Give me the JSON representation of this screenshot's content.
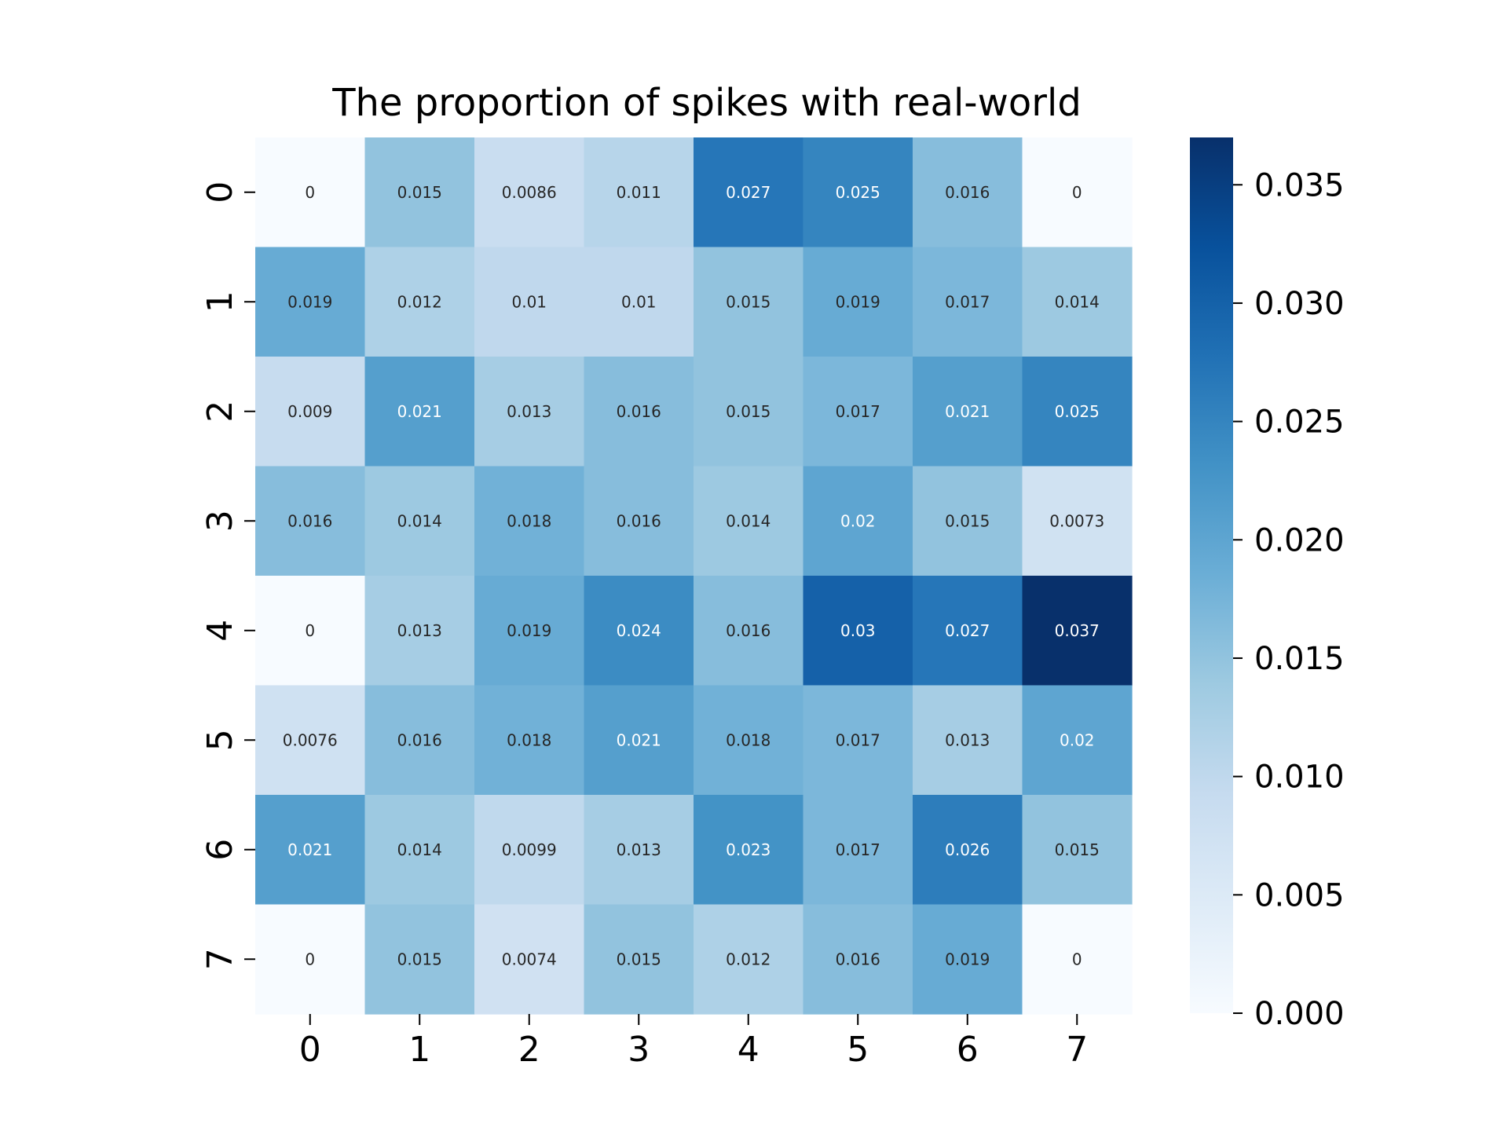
{
  "chart_data": {
    "type": "heatmap",
    "title": "The proportion of spikes with real-world",
    "x_labels": [
      "0",
      "1",
      "2",
      "3",
      "4",
      "5",
      "6",
      "7"
    ],
    "y_labels": [
      "0",
      "1",
      "2",
      "3",
      "4",
      "5",
      "6",
      "7"
    ],
    "values": [
      [
        0,
        0.015,
        0.0086,
        0.011,
        0.027,
        0.025,
        0.016,
        0
      ],
      [
        0.019,
        0.012,
        0.01,
        0.01,
        0.015,
        0.019,
        0.017,
        0.014
      ],
      [
        0.009,
        0.021,
        0.013,
        0.016,
        0.015,
        0.017,
        0.021,
        0.025
      ],
      [
        0.016,
        0.014,
        0.018,
        0.016,
        0.014,
        0.02,
        0.015,
        0.0073
      ],
      [
        0,
        0.013,
        0.019,
        0.024,
        0.016,
        0.03,
        0.027,
        0.037
      ],
      [
        0.0076,
        0.016,
        0.018,
        0.021,
        0.018,
        0.017,
        0.013,
        0.02
      ],
      [
        0.021,
        0.014,
        0.0099,
        0.013,
        0.023,
        0.017,
        0.026,
        0.015
      ],
      [
        0,
        0.015,
        0.0074,
        0.015,
        0.012,
        0.016,
        0.019,
        0
      ]
    ],
    "labels": [
      [
        "0",
        "0.015",
        "0.0086",
        "0.011",
        "0.027",
        "0.025",
        "0.016",
        "0"
      ],
      [
        "0.019",
        "0.012",
        "0.01",
        "0.01",
        "0.015",
        "0.019",
        "0.017",
        "0.014"
      ],
      [
        "0.009",
        "0.021",
        "0.013",
        "0.016",
        "0.015",
        "0.017",
        "0.021",
        "0.025"
      ],
      [
        "0.016",
        "0.014",
        "0.018",
        "0.016",
        "0.014",
        "0.02",
        "0.015",
        "0.0073"
      ],
      [
        "0",
        "0.013",
        "0.019",
        "0.024",
        "0.016",
        "0.03",
        "0.027",
        "0.037"
      ],
      [
        "0.0076",
        "0.016",
        "0.018",
        "0.021",
        "0.018",
        "0.017",
        "0.013",
        "0.02"
      ],
      [
        "0.021",
        "0.014",
        "0.0099",
        "0.013",
        "0.023",
        "0.017",
        "0.026",
        "0.015"
      ],
      [
        "0",
        "0.015",
        "0.0074",
        "0.015",
        "0.012",
        "0.016",
        "0.019",
        "0"
      ]
    ],
    "colormap": "Blues",
    "colorbar": {
      "min": 0,
      "max": 0.037,
      "ticks": [
        0,
        0.005,
        0.01,
        0.015,
        0.02,
        0.025,
        0.03,
        0.035
      ],
      "tick_labels": [
        "0.000",
        "0.005",
        "0.010",
        "0.015",
        "0.020",
        "0.025",
        "0.030",
        "0.035"
      ]
    }
  }
}
